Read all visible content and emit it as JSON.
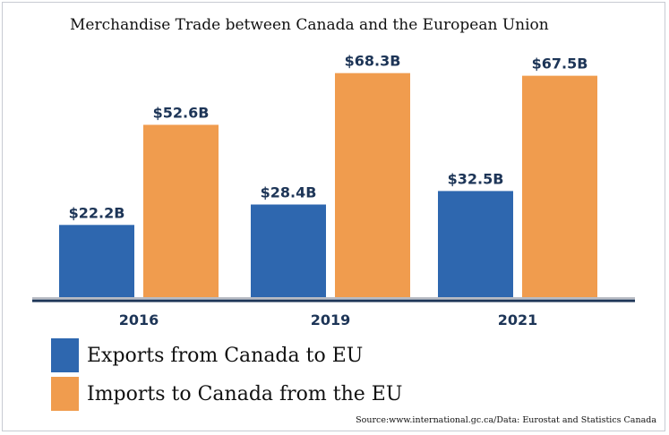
{
  "chart_data": {
    "type": "bar",
    "title": "Merchandise Trade between Canada and the European Union",
    "categories": [
      "2016",
      "2019",
      "2021"
    ],
    "series": [
      {
        "name": "Exports from Canada to EU",
        "values": [
          22.2,
          28.4,
          32.5
        ],
        "labels": [
          "$22.2B",
          "$28.4B",
          "$32.5B"
        ],
        "color": "#2e67af"
      },
      {
        "name": "Imports to Canada from the EU",
        "values": [
          52.6,
          68.3,
          67.5
        ],
        "labels": [
          "$52.6B",
          "$68.3B",
          "$67.5B"
        ],
        "color": "#f09c4e"
      }
    ],
    "ylim": [
      0,
      70
    ],
    "grid": false,
    "legend": "bottom-left",
    "source": "Source:www.international.gc.ca/Data: Eurostat and Statistics Canada"
  },
  "colors": {
    "exports": "#2e67af",
    "imports": "#f09c4e",
    "axis": "#1d3557",
    "label": "#1d3557"
  }
}
